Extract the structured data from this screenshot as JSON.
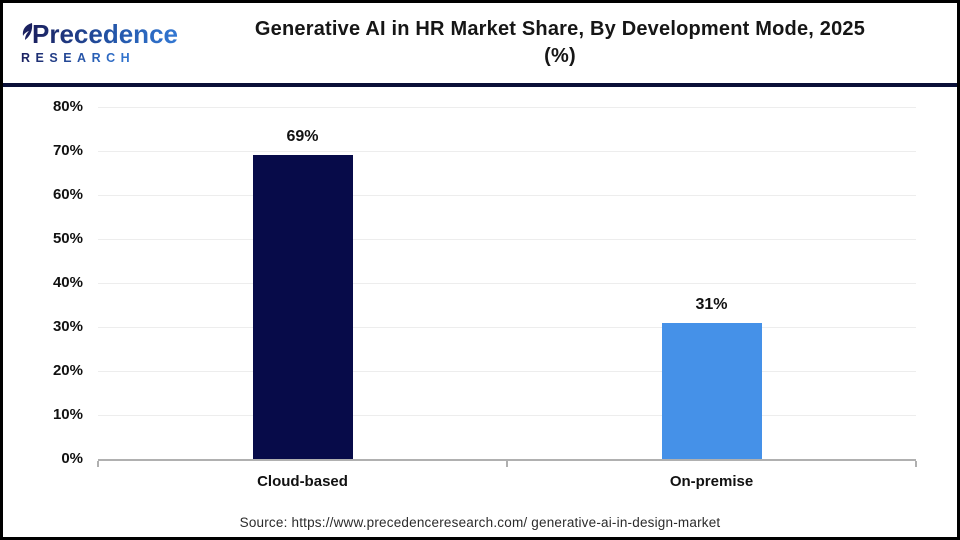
{
  "header": {
    "logo": {
      "line1": "Precedence",
      "line2": "RESEARCH"
    },
    "title_line1": "Generative AI in HR Market Share, By Development Mode, 2025",
    "title_line2": "(%)"
  },
  "footer": {
    "source": "Source: https://www.precedenceresearch.com/ generative-ai-in-design-market"
  },
  "colors": {
    "bar_cloud_based": "#070b49",
    "bar_on_premise": "#4591e8",
    "header_divider": "#0a1038",
    "axis_line": "#b0b0b0",
    "gridline": "#ededed",
    "frame_border": "#000000"
  },
  "chart_data": {
    "type": "bar",
    "title": "Generative AI in HR Market Share, By Development Mode, 2025 (%)",
    "categories": [
      "Cloud-based",
      "On-premise"
    ],
    "values": [
      69,
      31
    ],
    "value_labels": [
      "69%",
      "31%"
    ],
    "bar_colors": [
      "#070b49",
      "#4591e8"
    ],
    "xlabel": "",
    "ylabel": "",
    "ylim": [
      0,
      80
    ],
    "ytick_step": 10,
    "ytick_labels": [
      "0%",
      "10%",
      "20%",
      "30%",
      "40%",
      "50%",
      "60%",
      "70%",
      "80%"
    ],
    "grid": true,
    "legend": false
  }
}
